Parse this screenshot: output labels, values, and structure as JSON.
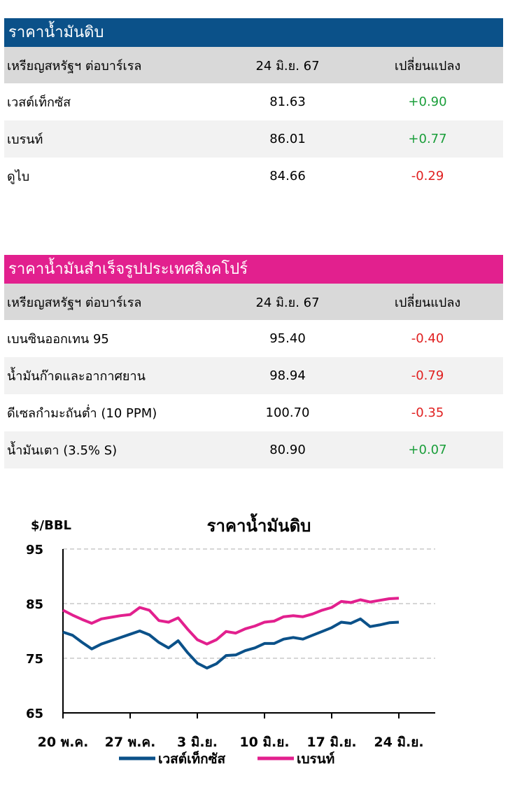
{
  "crude": {
    "title": "ราคาน้ำมันดิบ",
    "headers": {
      "name": "เหรียญสหรัฐฯ ต่อบาร์เรล",
      "date": "24 มิ.ย. 67",
      "change": "เปลี่ยนแปลง"
    },
    "rows": [
      {
        "name": "เวสต์เท็กซัส",
        "price": "81.63",
        "change": "+0.90"
      },
      {
        "name": "เบรนท์",
        "price": "86.01",
        "change": "+0.77"
      },
      {
        "name": "ดูไบ",
        "price": "84.66",
        "change": "-0.29"
      }
    ]
  },
  "singapore": {
    "title": "ราคาน้ำมันสำเร็จรูปประเทศสิงคโปร์",
    "headers": {
      "name": "เหรียญสหรัฐฯ ต่อบาร์เรล",
      "date": "24 มิ.ย. 67",
      "change": "เปลี่ยนแปลง"
    },
    "rows": [
      {
        "name": "เบนซินออกเทน 95",
        "price": "95.40",
        "change": "-0.40"
      },
      {
        "name": "น้ำมันก๊าดและอากาศยาน",
        "price": "98.94",
        "change": "-0.79"
      },
      {
        "name": "ดีเซลกำมะถันต่ำ (10 PPM)",
        "price": "100.70",
        "change": "-0.35"
      },
      {
        "name": "น้ำมันเตา (3.5% S)",
        "price": "80.90",
        "change": "+0.07"
      }
    ]
  },
  "colors": {
    "blue_header": "#0b5189",
    "pink_header": "#e2208e",
    "positive": "#1a9e3a",
    "negative": "#e02020",
    "wti_line": "#0b5189",
    "brent_line": "#e2208e"
  },
  "chart_data": {
    "type": "line",
    "title": "ราคาน้ำมันดิบ",
    "ylabel": "$/BBL",
    "ylim": [
      65,
      95
    ],
    "yticks": [
      "95",
      "85",
      "75",
      "65"
    ],
    "x_ticks": [
      "20 พ.ค.",
      "27 พ.ค.",
      "3 มิ.ย.",
      "10 มิ.ย.",
      "17 มิ.ย.",
      "24 มิ.ย."
    ],
    "grid": true,
    "legend_position": "bottom",
    "series": [
      {
        "name": "เวสต์เท็กซัส",
        "color": "#0b5189",
        "values": [
          79.8,
          79.2,
          77.9,
          76.7,
          77.6,
          78.2,
          78.8,
          79.4,
          80.0,
          79.3,
          77.9,
          76.9,
          78.2,
          76.0,
          74.1,
          73.2,
          74.0,
          75.5,
          75.6,
          76.4,
          76.9,
          77.7,
          77.7,
          78.5,
          78.8,
          78.5,
          79.2,
          79.9,
          80.6,
          81.6,
          81.4,
          82.2,
          80.8,
          81.1,
          81.5,
          81.6
        ]
      },
      {
        "name": "เบรนท์",
        "color": "#e2208e",
        "values": [
          83.8,
          82.9,
          82.1,
          81.4,
          82.2,
          82.5,
          82.8,
          83.0,
          84.3,
          83.8,
          81.9,
          81.6,
          82.4,
          80.3,
          78.4,
          77.6,
          78.4,
          79.9,
          79.6,
          80.4,
          80.9,
          81.6,
          81.8,
          82.6,
          82.8,
          82.6,
          83.1,
          83.8,
          84.3,
          85.4,
          85.2,
          85.7,
          85.3,
          85.6,
          85.9,
          86.0
        ]
      }
    ]
  }
}
